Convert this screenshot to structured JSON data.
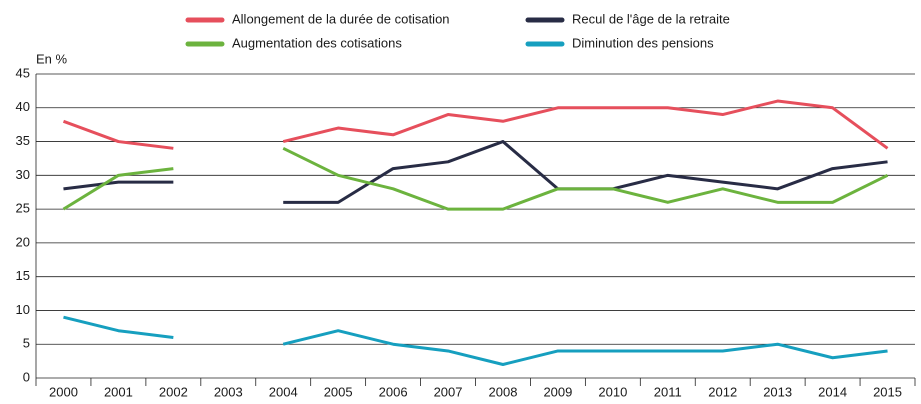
{
  "chart_data": {
    "type": "line",
    "y_label": "En %",
    "categories": [
      "2000",
      "2001",
      "2002",
      "2003",
      "2004",
      "2005",
      "2006",
      "2007",
      "2008",
      "2009",
      "2010",
      "2011",
      "2012",
      "2013",
      "2014",
      "2015"
    ],
    "series": [
      {
        "name": "Allongement de la durée de cotisation",
        "color": "#e64f5c",
        "values": [
          38,
          35,
          34,
          null,
          35,
          37,
          36,
          39,
          38,
          40,
          40,
          40,
          39,
          41,
          40,
          34
        ]
      },
      {
        "name": "Recul de l'âge de la retraite",
        "color": "#282c45",
        "values": [
          28,
          29,
          29,
          null,
          26,
          26,
          31,
          32,
          35,
          28,
          28,
          30,
          29,
          28,
          31,
          32
        ]
      },
      {
        "name": "Augmentation des cotisations",
        "color": "#6cb33e",
        "values": [
          25,
          30,
          31,
          null,
          34,
          30,
          28,
          25,
          25,
          28,
          28,
          26,
          28,
          26,
          26,
          30
        ]
      },
      {
        "name": "Diminution des pensions",
        "color": "#169fbf",
        "values": [
          9,
          7,
          6,
          null,
          5,
          7,
          5,
          4,
          2,
          4,
          4,
          4,
          4,
          5,
          3,
          4
        ]
      }
    ],
    "ylim": [
      0,
      45
    ],
    "yticks": [
      0,
      5,
      10,
      15,
      20,
      25,
      30,
      35,
      40,
      45
    ],
    "grid": true
  }
}
